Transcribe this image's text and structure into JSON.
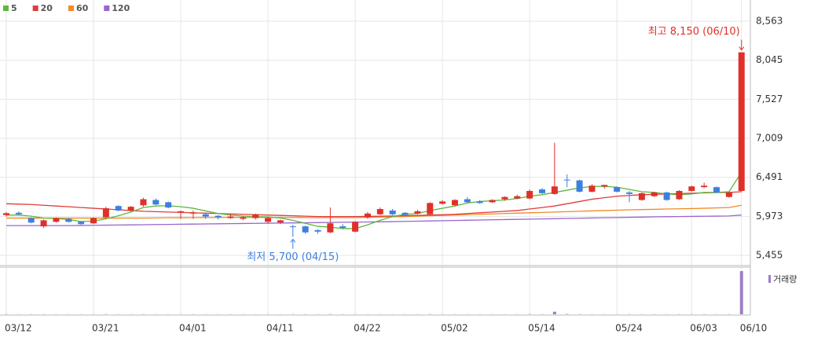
{
  "chart_data": {
    "type": "candlestick",
    "categories": [
      "03/12",
      null,
      null,
      null,
      null,
      null,
      null,
      "03/21",
      null,
      null,
      null,
      null,
      null,
      null,
      "04/01",
      null,
      null,
      null,
      null,
      null,
      null,
      "04/11",
      null,
      null,
      null,
      null,
      null,
      null,
      "04/22",
      null,
      null,
      null,
      null,
      null,
      null,
      "05/02",
      null,
      null,
      null,
      null,
      null,
      null,
      "05/14",
      null,
      null,
      null,
      null,
      null,
      null,
      "05/24",
      null,
      null,
      null,
      null,
      null,
      "06/03",
      null,
      null,
      null,
      "06/10"
    ],
    "candles": {
      "up_color": "#e0302a",
      "down_color": "#3d7fe0",
      "open": [
        5990,
        6020,
        5950,
        5840,
        5900,
        5940,
        5900,
        5880,
        5960,
        6110,
        6050,
        6120,
        6190,
        6160,
        6030,
        6010,
        6000,
        5980,
        5950,
        5940,
        5950,
        5900,
        5890,
        5840,
        5840,
        5790,
        5760,
        5840,
        5770,
        5960,
        6000,
        6050,
        6020,
        6010,
        6000,
        6140,
        6120,
        6200,
        6170,
        6160,
        6200,
        6210,
        6210,
        6330,
        6270,
        6460,
        6450,
        6300,
        6370,
        6360,
        6290,
        6190,
        6240,
        6290,
        6200,
        6310,
        6360,
        6360,
        6230,
        6310
      ],
      "high": [
        6030,
        6040,
        5960,
        5930,
        5960,
        5950,
        5910,
        5960,
        6100,
        6120,
        6110,
        6220,
        6210,
        6170,
        6050,
        6050,
        6010,
        5990,
        6000,
        5980,
        6010,
        5970,
        5930,
        5860,
        5850,
        5800,
        6090,
        5870,
        5910,
        6030,
        6090,
        6070,
        6030,
        6060,
        6160,
        6190,
        6200,
        6230,
        6190,
        6200,
        6240,
        6260,
        6330,
        6350,
        6950,
        6530,
        6460,
        6400,
        6390,
        6370,
        6310,
        6290,
        6300,
        6300,
        6320,
        6380,
        6420,
        6370,
        6290,
        8150
      ],
      "low": [
        5970,
        5990,
        5880,
        5820,
        5890,
        5890,
        5860,
        5870,
        5950,
        6040,
        6040,
        6100,
        6120,
        6080,
        5940,
        5940,
        5940,
        5930,
        5940,
        5920,
        5930,
        5880,
        5870,
        5700,
        5740,
        5740,
        5750,
        5800,
        5760,
        5940,
        5990,
        5990,
        5980,
        6000,
        5990,
        6130,
        6110,
        6150,
        6140,
        6150,
        6180,
        6200,
        6200,
        6270,
        6260,
        6360,
        6290,
        6290,
        6340,
        6290,
        6160,
        6180,
        6230,
        6180,
        6190,
        6300,
        6350,
        6280,
        6220,
        6300
      ],
      "close": [
        6015,
        6000,
        5890,
        5920,
        5950,
        5900,
        5870,
        5950,
        6080,
        6050,
        6100,
        6200,
        6130,
        6090,
        6040,
        6020,
        5970,
        5960,
        5970,
        5960,
        6000,
        5950,
        5920,
        5830,
        5760,
        5770,
        5880,
        5820,
        5900,
        6010,
        6070,
        6000,
        5990,
        6040,
        6150,
        6170,
        6190,
        6160,
        6150,
        6190,
        6230,
        6240,
        6310,
        6280,
        6370,
        6450,
        6300,
        6380,
        6390,
        6300,
        6270,
        6280,
        6290,
        6190,
        6310,
        6370,
        6380,
        6290,
        6290,
        8150
      ]
    },
    "series": [
      {
        "name": "5",
        "color": "#5cb840",
        "values": [
          5990,
          5990,
          5975,
          5950,
          5945,
          5930,
          5905,
          5910,
          5940,
          5980,
          6030,
          6090,
          6110,
          6115,
          6100,
          6080,
          6045,
          6010,
          5990,
          5975,
          5970,
          5965,
          5950,
          5920,
          5880,
          5840,
          5830,
          5810,
          5810,
          5860,
          5920,
          5970,
          6000,
          6010,
          6050,
          6080,
          6110,
          6150,
          6170,
          6180,
          6190,
          6210,
          6240,
          6260,
          6290,
          6320,
          6350,
          6370,
          6370,
          6360,
          6330,
          6300,
          6290,
          6270,
          6260,
          6270,
          6290,
          6290,
          6300,
          6560
        ]
      },
      {
        "name": "20",
        "color": "#e03c3c",
        "values": [
          6140,
          6135,
          6130,
          6120,
          6110,
          6100,
          6090,
          6080,
          6070,
          6060,
          6050,
          6040,
          6035,
          6030,
          6025,
          6020,
          6015,
          6010,
          6005,
          6000,
          5995,
          5990,
          5985,
          5980,
          5975,
          5970,
          5970,
          5970,
          5970,
          5972,
          5975,
          5978,
          5982,
          5985,
          5990,
          5995,
          6000,
          6010,
          6020,
          6030,
          6040,
          6050,
          6070,
          6090,
          6110,
          6140,
          6170,
          6200,
          6220,
          6240,
          6250,
          6260,
          6265,
          6270,
          6275,
          6280,
          6285,
          6290,
          6290,
          6300
        ]
      },
      {
        "name": "60",
        "color": "#f08a24",
        "values": [
          5950,
          5950,
          5950,
          5950,
          5950,
          5950,
          5950,
          5950,
          5950,
          5950,
          5950,
          5950,
          5952,
          5954,
          5955,
          5956,
          5957,
          5958,
          5958,
          5958,
          5958,
          5958,
          5958,
          5958,
          5957,
          5956,
          5956,
          5956,
          5957,
          5960,
          5963,
          5966,
          5970,
          5975,
          5980,
          5985,
          5990,
          5995,
          6000,
          6005,
          6010,
          6015,
          6020,
          6025,
          6030,
          6035,
          6040,
          6045,
          6050,
          6055,
          6060,
          6063,
          6066,
          6070,
          6073,
          6076,
          6080,
          6085,
          6090,
          6120
        ]
      },
      {
        "name": "120",
        "color": "#9966cc",
        "values": [
          5850,
          5850,
          5850,
          5850,
          5850,
          5850,
          5852,
          5854,
          5856,
          5858,
          5860,
          5862,
          5864,
          5866,
          5868,
          5870,
          5872,
          5874,
          5876,
          5878,
          5880,
          5882,
          5884,
          5886,
          5888,
          5890,
          5892,
          5894,
          5896,
          5898,
          5900,
          5903,
          5906,
          5909,
          5912,
          5915,
          5918,
          5921,
          5924,
          5927,
          5930,
          5933,
          5936,
          5939,
          5942,
          5945,
          5948,
          5951,
          5954,
          5957,
          5960,
          5963,
          5966,
          5968,
          5970,
          5972,
          5974,
          5976,
          5978,
          5990
        ]
      }
    ],
    "volume": {
      "name": "거래량",
      "color": "#9b7fc4",
      "values": [
        0.4,
        0.3,
        0.4,
        0.4,
        0.3,
        0.3,
        0.3,
        0.3,
        0.5,
        0.3,
        0.3,
        0.4,
        0.3,
        0.3,
        0.3,
        0.3,
        0.3,
        0.3,
        0.3,
        0.3,
        0.3,
        0.3,
        0.3,
        0.5,
        0.4,
        0.3,
        0.6,
        0.3,
        0.4,
        0.3,
        0.3,
        0.3,
        0.3,
        0.3,
        0.5,
        0.3,
        0.3,
        0.3,
        0.3,
        0.3,
        0.3,
        0.3,
        0.5,
        0.4,
        6,
        0.8,
        0.5,
        0.3,
        0.3,
        0.3,
        0.4,
        0.3,
        0.3,
        0.3,
        0.4,
        0.4,
        0.4,
        0.3,
        0.4,
        100
      ]
    },
    "annotations": {
      "high": "최고 8,150 (06/10)",
      "low": "최저 5,700 (04/15)"
    },
    "ylim": [
      5455,
      8563
    ],
    "yticks": [
      {
        "value": 5455,
        "label": "5,455"
      },
      {
        "value": 5973,
        "label": "5,973"
      },
      {
        "value": 6491,
        "label": "6,491"
      },
      {
        "value": 7009,
        "label": "7,009"
      },
      {
        "value": 7527,
        "label": "7,527"
      },
      {
        "value": 8045,
        "label": "8,045"
      },
      {
        "value": 8563,
        "label": "8,563"
      }
    ],
    "grid": true
  }
}
